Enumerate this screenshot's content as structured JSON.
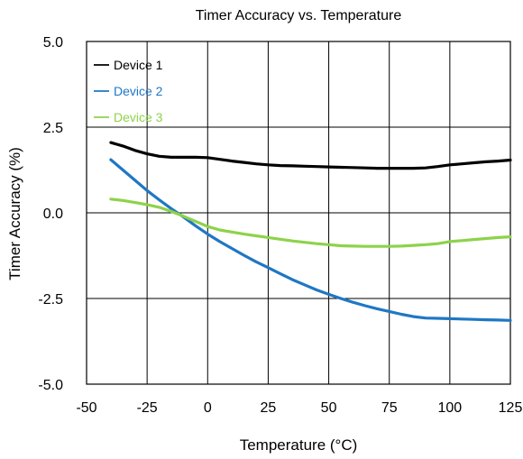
{
  "chart_data": {
    "type": "line",
    "title": "Timer Accuracy vs. Temperature",
    "xlabel": "Temperature (°C)",
    "ylabel": "Timer Accuracy (%)",
    "xlim": [
      -50,
      125
    ],
    "ylim": [
      -5.0,
      5.0
    ],
    "x_ticks": [
      "-50",
      "-25",
      "0",
      "25",
      "50",
      "75",
      "100",
      "125"
    ],
    "y_ticks": [
      "5.0",
      "2.5",
      "0.0",
      "-2.5",
      "-5.0"
    ],
    "x_tick_values": [
      -50,
      -25,
      0,
      25,
      50,
      75,
      100,
      125
    ],
    "y_tick_values": [
      5.0,
      2.5,
      0.0,
      -2.5,
      -5.0
    ],
    "grid": true,
    "legend_position": "top-left",
    "series": [
      {
        "name": "Device 1",
        "color": "#000000",
        "x": [
          -40,
          -35,
          -30,
          -25,
          -20,
          -15,
          -10,
          -5,
          0,
          5,
          10,
          15,
          20,
          25,
          30,
          35,
          40,
          45,
          50,
          55,
          60,
          65,
          70,
          75,
          80,
          85,
          90,
          95,
          100,
          105,
          110,
          115,
          120,
          125
        ],
        "values": [
          2.05,
          1.95,
          1.82,
          1.72,
          1.65,
          1.62,
          1.62,
          1.62,
          1.61,
          1.56,
          1.51,
          1.47,
          1.43,
          1.4,
          1.38,
          1.37,
          1.36,
          1.35,
          1.34,
          1.33,
          1.32,
          1.31,
          1.3,
          1.3,
          1.3,
          1.3,
          1.31,
          1.35,
          1.4,
          1.43,
          1.46,
          1.49,
          1.51,
          1.54
        ]
      },
      {
        "name": "Device 2",
        "color": "#1f77c4",
        "x": [
          -40,
          -35,
          -30,
          -25,
          -20,
          -15,
          -10,
          -5,
          0,
          5,
          10,
          15,
          20,
          25,
          30,
          35,
          40,
          45,
          50,
          55,
          60,
          65,
          70,
          75,
          80,
          85,
          90,
          95,
          100,
          105,
          110,
          115,
          120,
          125
        ],
        "values": [
          1.55,
          1.25,
          0.95,
          0.65,
          0.38,
          0.12,
          -0.12,
          -0.38,
          -0.62,
          -0.84,
          -1.04,
          -1.24,
          -1.43,
          -1.6,
          -1.78,
          -1.95,
          -2.1,
          -2.25,
          -2.38,
          -2.5,
          -2.61,
          -2.71,
          -2.8,
          -2.88,
          -2.96,
          -3.03,
          -3.07,
          -3.08,
          -3.09,
          -3.1,
          -3.11,
          -3.12,
          -3.13,
          -3.14
        ]
      },
      {
        "name": "Device 3",
        "color": "#8ed24a",
        "x": [
          -40,
          -35,
          -30,
          -25,
          -20,
          -15,
          -10,
          -5,
          0,
          5,
          10,
          15,
          20,
          25,
          30,
          35,
          40,
          45,
          50,
          55,
          60,
          65,
          70,
          75,
          80,
          85,
          90,
          95,
          100,
          105,
          110,
          115,
          120,
          125
        ],
        "values": [
          0.4,
          0.36,
          0.3,
          0.24,
          0.16,
          0.04,
          -0.1,
          -0.25,
          -0.4,
          -0.5,
          -0.56,
          -0.62,
          -0.67,
          -0.72,
          -0.77,
          -0.82,
          -0.86,
          -0.9,
          -0.93,
          -0.96,
          -0.97,
          -0.98,
          -0.98,
          -0.98,
          -0.97,
          -0.95,
          -0.93,
          -0.9,
          -0.84,
          -0.81,
          -0.78,
          -0.75,
          -0.72,
          -0.7
        ]
      }
    ]
  }
}
